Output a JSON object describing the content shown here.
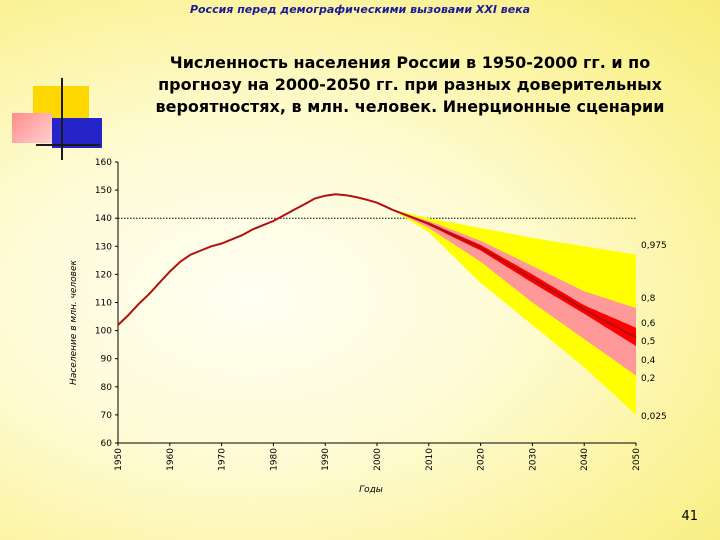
{
  "header": {
    "text": "Россия перед демографическими вызовами XXI века"
  },
  "title": {
    "lines": [
      "Численность населения России в 1950-2000 гг. и по",
      "прогнозу на 2000-2050 гг. при разных доверительных",
      "вероятностях, в млн. человек. Инерционные сценарии"
    ]
  },
  "page_number": "41",
  "colors": {
    "band_outer": "#ffff00",
    "band_middle": "#ff9999",
    "band_inner": "#ff0000",
    "line": "#b01010",
    "reference_line": "#000000"
  },
  "chart_data": {
    "type": "line",
    "title": "",
    "xlabel": "Годы",
    "ylabel": "Население в млн. человек",
    "xlim": [
      1950,
      2050
    ],
    "ylim": [
      60,
      160
    ],
    "x_ticks": [
      1950,
      1960,
      1970,
      1980,
      1990,
      2000,
      2010,
      2020,
      2030,
      2040,
      2050
    ],
    "y_ticks": [
      60,
      70,
      80,
      90,
      100,
      110,
      120,
      130,
      140,
      150,
      160
    ],
    "reference_line_y": 140,
    "historical": {
      "x": [
        1950,
        1952,
        1954,
        1956,
        1958,
        1960,
        1962,
        1964,
        1966,
        1968,
        1970,
        1972,
        1974,
        1976,
        1978,
        1980,
        1982,
        1984,
        1986,
        1988,
        1990,
        1992,
        1994,
        1996,
        1998,
        2000,
        2003
      ],
      "y": [
        102,
        105.5,
        109.5,
        113,
        117,
        121,
        124.5,
        127,
        128.5,
        130,
        131,
        132.5,
        134,
        136,
        137.5,
        139,
        141,
        143,
        145,
        147,
        148,
        148.5,
        148.2,
        147.5,
        146.6,
        145.5,
        143
      ]
    },
    "forecast": {
      "x": [
        2003,
        2010,
        2020,
        2030,
        2040,
        2050
      ],
      "quantiles": [
        {
          "label": "0,975",
          "y": [
            143,
            140,
            136.5,
            133,
            130,
            127
          ]
        },
        {
          "label": "0,8",
          "y": [
            143,
            139,
            132,
            123,
            114,
            108
          ]
        },
        {
          "label": "0,6",
          "y": [
            143,
            138.5,
            130.5,
            120,
            109,
            101
          ]
        },
        {
          "label": "0,5",
          "y": [
            143,
            138,
            129.5,
            118.5,
            107.5,
            97.5
          ]
        },
        {
          "label": "0,4",
          "y": [
            143,
            137.5,
            128.5,
            117,
            106,
            94.5
          ]
        },
        {
          "label": "0,2",
          "y": [
            143,
            136.5,
            124.5,
            110,
            97,
            84
          ]
        },
        {
          "label": "0,025",
          "y": [
            143,
            135,
            117,
            102,
            87,
            70
          ]
        }
      ]
    }
  }
}
